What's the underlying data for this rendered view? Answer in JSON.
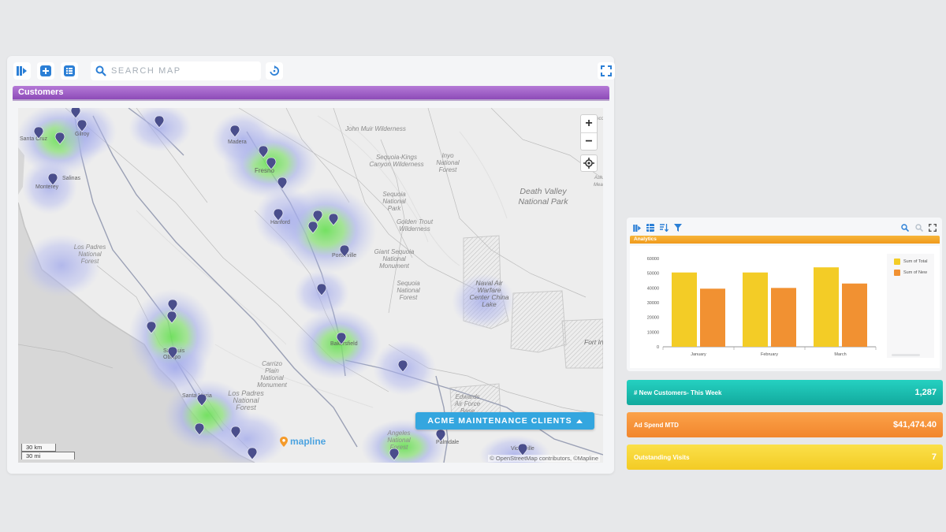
{
  "map": {
    "toolbar": {
      "search_placeholder": "SEARCH MAP"
    },
    "layer_title": "Customers",
    "legend_badge": "ACME MAINTENANCE CLIENTS",
    "scale": {
      "km": "30 km",
      "mi": "30 mi"
    },
    "attribution": "© OpenStreetMap contributors, ©Mapline",
    "logo_text": "mapline",
    "cities": [
      "Santa Cruz",
      "Gilroy",
      "Monterey",
      "Salinas",
      "Madera",
      "Fresno",
      "Hanford",
      "Porterville",
      "Bakersfield",
      "San Luis Obispo",
      "Santa Maria",
      "Palmdale",
      "Victorville"
    ],
    "regions": [
      "John Muir Wilderness",
      "Sequoia-Kings Canyon Wilderness",
      "Inyo National Forest",
      "Sequoia National Park",
      "Golden Trout Wilderness",
      "Giant Sequoia National Monument",
      "Sequoia National Forest",
      "Los Padres National Forest",
      "Carrizo Plain National Monument",
      "Edwards Air Force Base",
      "Angeles National Forest",
      "Los Padres National Forest"
    ],
    "big_labels": [
      "Death Valley National Park",
      "Naval Air Warfare Center China Lake",
      "Fort Irwin"
    ],
    "side_labels": [
      "Tecopa",
      "Ash Meadows"
    ]
  },
  "analytics": {
    "title": "Analytics",
    "chart_data": {
      "type": "bar",
      "categories": [
        "January",
        "February",
        "March"
      ],
      "series": [
        {
          "name": "Sum of Total",
          "values": [
            50500,
            50500,
            54000
          ],
          "color": "#f3cc26"
        },
        {
          "name": "Sum of New",
          "values": [
            39500,
            40000,
            43000
          ],
          "color": "#f19132"
        }
      ],
      "yticks": [
        "0",
        "10000",
        "20000",
        "30000",
        "40000",
        "50000",
        "60000"
      ],
      "ylim": [
        0,
        60000
      ],
      "legend": "right"
    }
  },
  "kpis": [
    {
      "label": "# New Customers- This Week",
      "value": "1,287",
      "color": "#1ab8ab"
    },
    {
      "label": "Ad Spend MTD",
      "value": "$41,474.40",
      "color": "#f5903a"
    },
    {
      "label": "Outstanding Visits",
      "value": "7",
      "color": "#f6d43a"
    }
  ]
}
